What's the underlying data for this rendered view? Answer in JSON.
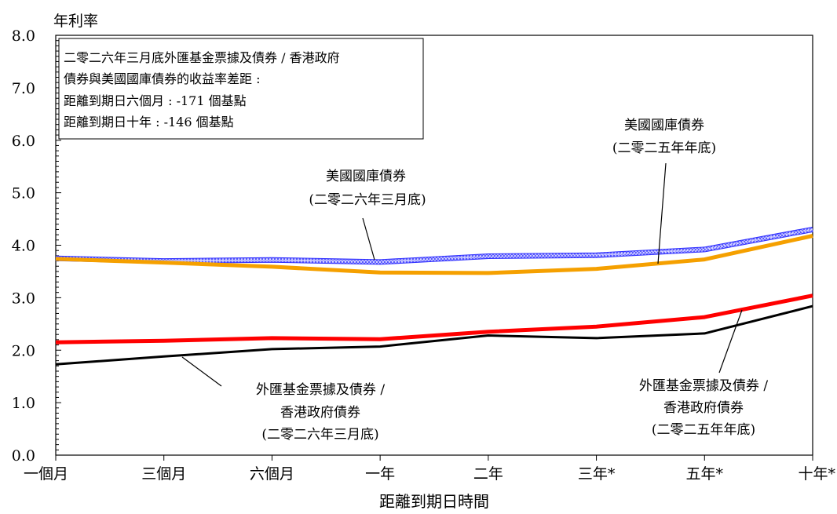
{
  "chart_data": {
    "type": "line",
    "ylabel": "年利率",
    "xlabel": "距離到期日時間",
    "ylim": [
      0,
      8
    ],
    "yticks": [
      "0.0",
      "1.0",
      "2.0",
      "3.0",
      "4.0",
      "5.0",
      "6.0",
      "7.0",
      "8.0"
    ],
    "categories": [
      "一個月",
      "三個月",
      "六個月",
      "一年",
      "二年",
      "三年*",
      "五年*",
      "十年*"
    ],
    "series": [
      {
        "key": "us_2026",
        "values": [
          3.75,
          3.7,
          3.72,
          3.68,
          3.79,
          3.81,
          3.92,
          4.3
        ],
        "color": "#8080ff"
      },
      {
        "key": "us_2025",
        "values": [
          3.74,
          3.67,
          3.59,
          3.48,
          3.47,
          3.55,
          3.73,
          4.18
        ],
        "color": "#f5a000"
      },
      {
        "key": "efb_2025",
        "values": [
          2.15,
          2.18,
          2.23,
          2.21,
          2.35,
          2.45,
          2.63,
          3.04
        ],
        "color": "#ff0000"
      },
      {
        "key": "efb_2026",
        "values": [
          1.73,
          1.88,
          2.02,
          2.07,
          2.28,
          2.23,
          2.32,
          2.84
        ],
        "color": "#000000"
      }
    ],
    "annotations": [
      {
        "key": "us_2026",
        "lines": [
          "美國國庫債券",
          "(二零二六年三月底)"
        ]
      },
      {
        "key": "us_2025",
        "lines": [
          "美國國庫債券",
          "(二零二五年年底)"
        ]
      },
      {
        "key": "efb_2026",
        "lines": [
          "外匯基金票據及債券 /",
          "香港政府債券",
          "(二零二六年三月底)"
        ]
      },
      {
        "key": "efb_2025",
        "lines": [
          "外匯基金票據及債券 /",
          "香港政府債券",
          "(二零二五年年底)"
        ]
      }
    ],
    "info_box": [
      "二零二六年三月底外匯基金票據及債券 / 香港政府",
      "債券與美國國庫債券的收益率差距 :",
      "距離到期日六個月 : -171 個基點",
      "距離到期日十年 : -146 個基點"
    ]
  }
}
